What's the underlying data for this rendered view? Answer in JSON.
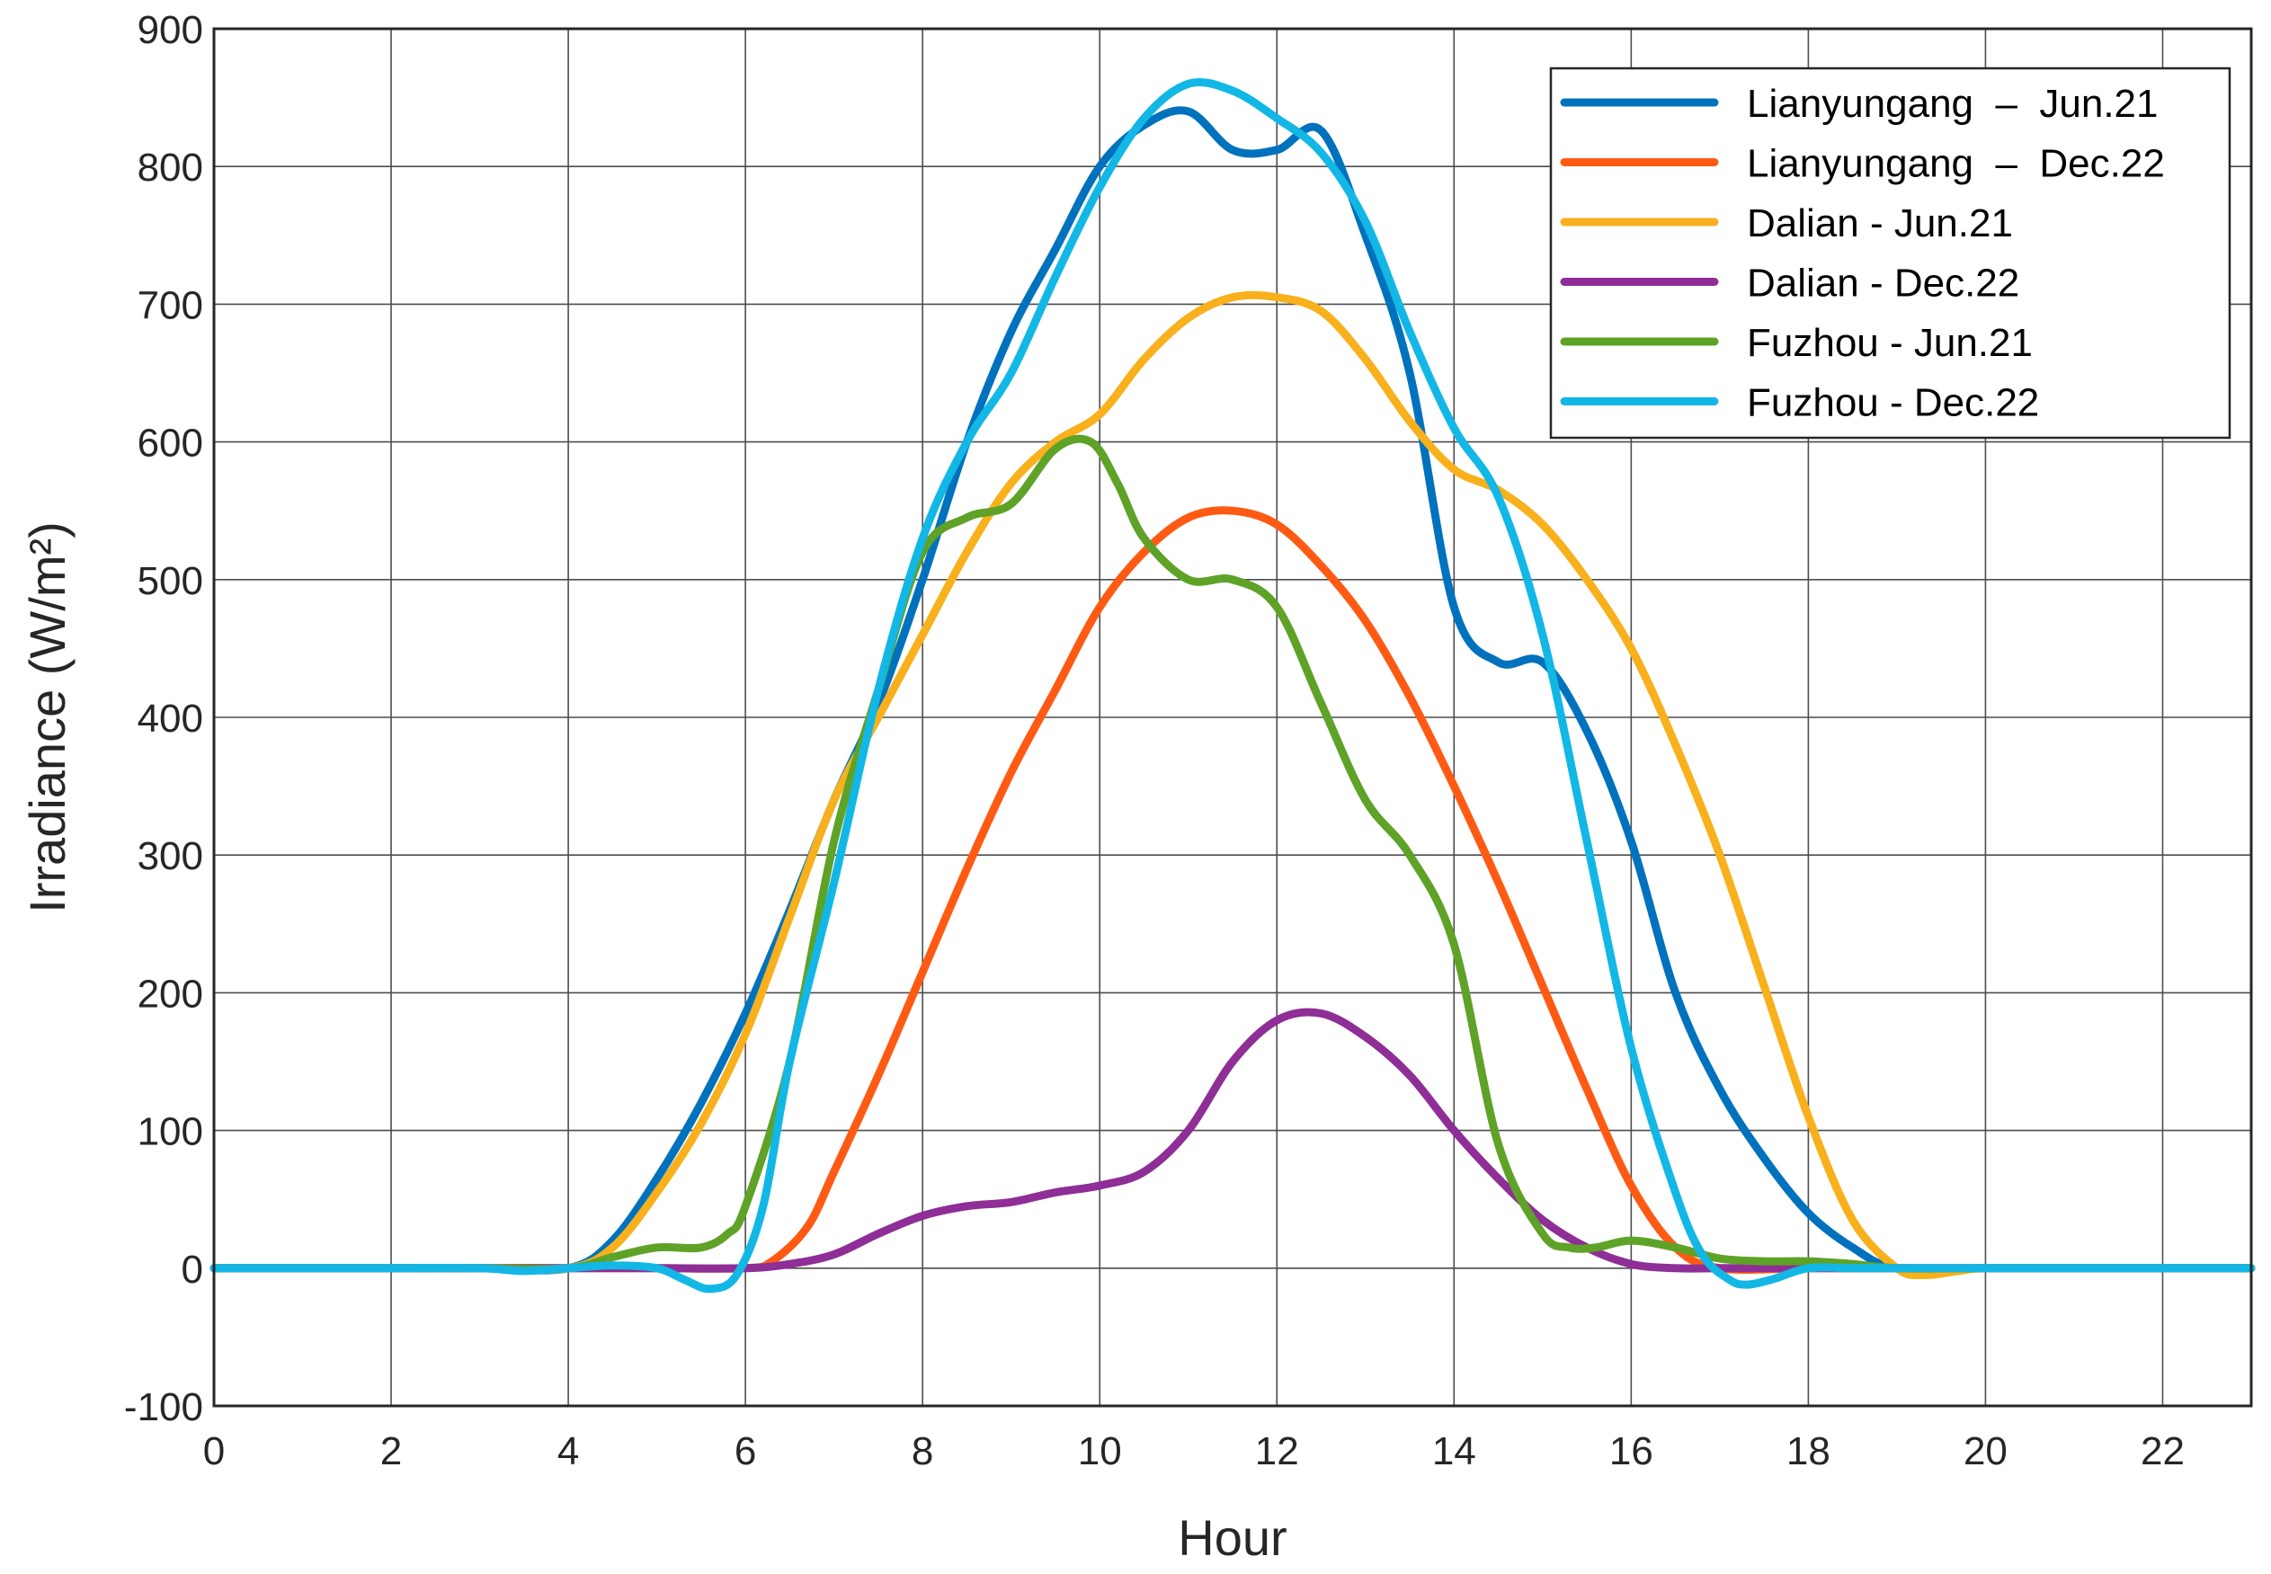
{
  "chart_data": {
    "type": "line",
    "xlabel": "Hour",
    "ylabel": "Irradiance (W/m²)",
    "xlim": [
      0,
      23
    ],
    "ylim": [
      -100,
      900
    ],
    "xticks": [
      0,
      2,
      4,
      6,
      8,
      10,
      12,
      14,
      16,
      18,
      20,
      22
    ],
    "yticks": [
      -100,
      0,
      100,
      200,
      300,
      400,
      500,
      600,
      700,
      800,
      900
    ],
    "grid": true,
    "legend_position": "top-right",
    "series": [
      {
        "name": "Lianyungang  –  Jun.21",
        "color": "#0072BD",
        "x": [
          0,
          1,
          2,
          3,
          4,
          4.5,
          5,
          5.5,
          6,
          6.5,
          7,
          7.5,
          8,
          8.5,
          9,
          9.5,
          10,
          10.5,
          11,
          11.5,
          12,
          12.5,
          13,
          13.5,
          14,
          14.5,
          15,
          15.5,
          16,
          16.5,
          17,
          17.5,
          18,
          18.5,
          19,
          20,
          21,
          22,
          23
        ],
        "y": [
          0,
          0,
          0,
          0,
          0,
          20,
          65,
          120,
          185,
          260,
          340,
          410,
          500,
          600,
          680,
          740,
          800,
          830,
          840,
          812,
          812,
          826,
          750,
          650,
          480,
          440,
          440,
          390,
          310,
          200,
          130,
          80,
          40,
          15,
          0,
          0,
          0,
          0,
          0
        ]
      },
      {
        "name": "Lianyungang  –  Dec.22",
        "color": "#FF5A14",
        "x": [
          0,
          1,
          2,
          3,
          4,
          5,
          6,
          6.3,
          6.7,
          7,
          7.5,
          8,
          8.5,
          9,
          9.5,
          10,
          10.5,
          11,
          11.5,
          12,
          12.5,
          13,
          13.5,
          14,
          14.5,
          15,
          15.5,
          16,
          16.5,
          17,
          18,
          19,
          20,
          21,
          22,
          23
        ],
        "y": [
          0,
          0,
          0,
          0,
          0,
          0,
          0,
          5,
          30,
          70,
          140,
          215,
          290,
          360,
          420,
          480,
          520,
          545,
          550,
          540,
          510,
          470,
          415,
          350,
          280,
          205,
          130,
          60,
          15,
          0,
          0,
          0,
          0,
          0,
          0,
          0
        ]
      },
      {
        "name": "Dalian - Jun.21",
        "color": "#F8B01C",
        "x": [
          0,
          1,
          2,
          3,
          4,
          4.5,
          5,
          5.5,
          6,
          6.5,
          7,
          7.5,
          8,
          8.5,
          9,
          9.5,
          10,
          10.5,
          11,
          11.5,
          12,
          12.5,
          13,
          13.5,
          14,
          14.5,
          15,
          15.5,
          16,
          16.5,
          17,
          17.5,
          18,
          18.5,
          19,
          19.3,
          19.7,
          20,
          21,
          22,
          23
        ],
        "y": [
          0,
          0,
          0,
          0,
          0,
          15,
          55,
          105,
          170,
          255,
          340,
          400,
          460,
          520,
          570,
          600,
          620,
          660,
          690,
          705,
          705,
          695,
          660,
          615,
          580,
          565,
          540,
          500,
          450,
          380,
          300,
          205,
          110,
          35,
          0,
          -5,
          -2,
          0,
          0,
          0,
          0
        ]
      },
      {
        "name": "Dalian - Dec.22",
        "color": "#8E2E96",
        "x": [
          0,
          1,
          2,
          3,
          4,
          5,
          6,
          6.5,
          7,
          7.5,
          8,
          8.5,
          9,
          9.5,
          10,
          10.5,
          11,
          11.5,
          12,
          12.5,
          13,
          13.5,
          14,
          14.5,
          15,
          15.5,
          16,
          16.5,
          17,
          18,
          19,
          20,
          21,
          22,
          23
        ],
        "y": [
          0,
          0,
          0,
          0,
          0,
          0,
          0,
          3,
          10,
          25,
          38,
          45,
          48,
          55,
          60,
          70,
          100,
          150,
          180,
          185,
          168,
          140,
          100,
          65,
          35,
          15,
          3,
          0,
          0,
          0,
          0,
          0,
          0,
          0,
          0
        ]
      },
      {
        "name": "Fuzhou - Jun.21",
        "color": "#5EA227",
        "x": [
          0,
          1,
          2,
          3,
          4,
          4.5,
          5,
          5.5,
          5.8,
          6,
          6.5,
          7,
          7.5,
          8,
          8.5,
          9,
          9.5,
          9.9,
          10.2,
          10.5,
          11,
          11.5,
          12,
          12.5,
          13,
          13.5,
          14,
          14.5,
          15,
          15.3,
          15.6,
          16,
          16.5,
          17,
          17.5,
          18,
          18.5,
          19,
          20,
          21,
          22,
          23
        ],
        "y": [
          0,
          0,
          0,
          0,
          0,
          8,
          15,
          15,
          25,
          45,
          150,
          310,
          420,
          520,
          545,
          555,
          595,
          600,
          570,
          530,
          500,
          500,
          480,
          410,
          340,
          300,
          235,
          90,
          25,
          15,
          15,
          20,
          15,
          7,
          5,
          5,
          3,
          0,
          0,
          0,
          0,
          0
        ]
      },
      {
        "name": "Fuzhou - Dec.22",
        "color": "#12B7E6",
        "x": [
          0,
          1,
          2,
          3,
          3.5,
          4,
          4.5,
          5,
          5.3,
          5.6,
          5.9,
          6.2,
          6.5,
          7,
          7.5,
          8,
          8.5,
          9,
          9.5,
          10,
          10.5,
          11,
          11.5,
          12,
          12.5,
          13,
          13.5,
          14,
          14.5,
          15,
          15.5,
          16,
          16.5,
          16.8,
          17.1,
          17.3,
          17.6,
          18,
          18.5,
          19,
          20,
          21,
          22,
          23
        ],
        "y": [
          0,
          0,
          0,
          0,
          -2,
          0,
          2,
          0,
          -8,
          -15,
          -5,
          45,
          150,
          280,
          420,
          530,
          600,
          650,
          720,
          785,
          835,
          860,
          855,
          835,
          810,
          760,
          680,
          610,
          560,
          460,
          310,
          160,
          55,
          10,
          -8,
          -12,
          -8,
          0,
          0,
          0,
          0,
          0,
          0,
          0
        ]
      }
    ]
  }
}
